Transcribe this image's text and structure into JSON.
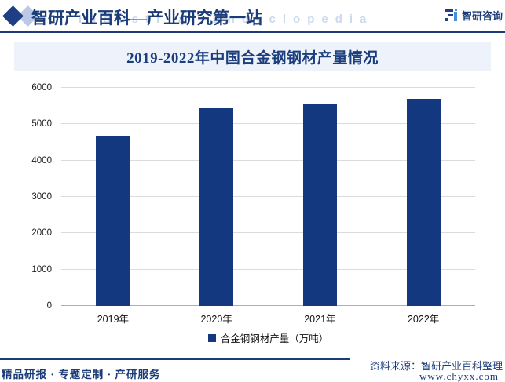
{
  "header": {
    "brand": "智研产业百科—产业研究第一站",
    "watermark": "Industrial Encyclopedia",
    "logo_right_label": "智研咨询"
  },
  "chart_data": {
    "type": "bar",
    "title": "2019-2022年中国合金钢钢材产量情况",
    "categories": [
      "2019年",
      "2020年",
      "2021年",
      "2022年"
    ],
    "values": [
      4690,
      5430,
      5540,
      5690
    ],
    "series_name": "合金钢钢材产量（万吨）",
    "xlabel": "",
    "ylabel": "",
    "ylim": [
      0,
      6000
    ],
    "yticks": [
      0,
      1000,
      2000,
      3000,
      4000,
      5000,
      6000
    ],
    "grid": true,
    "legend_position": "bottom",
    "bar_color": "#14387f",
    "title_band_color": "#edf2fb",
    "accent_color": "#1b3c78"
  },
  "footer": {
    "tagline": "精品研报 · 专题定制 · 产研服务",
    "source_label": "资料来源：智研产业百科整理",
    "website": "www.chyxx.com"
  }
}
